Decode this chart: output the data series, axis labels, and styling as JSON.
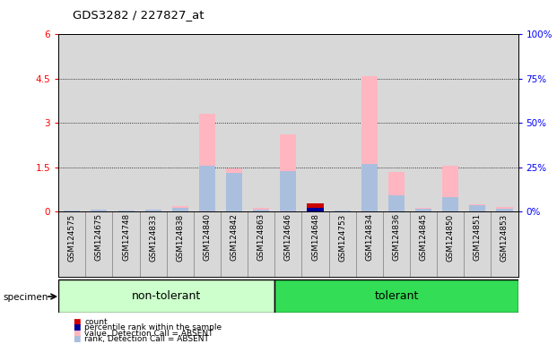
{
  "title": "GDS3282 / 227827_at",
  "samples": [
    "GSM124575",
    "GSM124675",
    "GSM124748",
    "GSM124833",
    "GSM124838",
    "GSM124840",
    "GSM124842",
    "GSM124863",
    "GSM124646",
    "GSM124648",
    "GSM124753",
    "GSM124834",
    "GSM124836",
    "GSM124845",
    "GSM124850",
    "GSM124851",
    "GSM124853"
  ],
  "n_nontol": 8,
  "n_tol": 9,
  "value_absent": [
    0.05,
    0.08,
    0.04,
    0.07,
    0.18,
    3.3,
    1.45,
    0.12,
    2.6,
    0.0,
    0.05,
    4.6,
    1.35,
    0.12,
    1.55,
    0.25,
    0.15
  ],
  "rank_absent": [
    0.04,
    0.06,
    0.03,
    0.06,
    0.14,
    1.55,
    1.3,
    0.08,
    1.38,
    0.0,
    0.04,
    1.6,
    0.55,
    0.09,
    0.5,
    0.22,
    0.1
  ],
  "count": [
    0.0,
    0.0,
    0.0,
    0.0,
    0.0,
    0.0,
    0.0,
    0.0,
    0.0,
    0.28,
    0.0,
    0.0,
    0.0,
    0.0,
    0.0,
    0.0,
    0.0
  ],
  "percentile": [
    0.0,
    0.0,
    0.0,
    0.0,
    0.0,
    0.0,
    0.0,
    0.0,
    0.0,
    0.12,
    0.0,
    0.0,
    0.0,
    0.0,
    0.0,
    0.0,
    0.0
  ],
  "ylim_left": [
    0,
    6
  ],
  "ylim_right": [
    0,
    100
  ],
  "yticks_left": [
    0,
    1.5,
    3,
    4.5,
    6
  ],
  "yticks_left_labels": [
    "0",
    "1.5",
    "3",
    "4.5",
    "6"
  ],
  "yticks_right": [
    0,
    25,
    50,
    75,
    100
  ],
  "yticks_right_labels": [
    "0%",
    "25%",
    "50%",
    "75%",
    "100%"
  ],
  "color_value_absent": "#FFB6C1",
  "color_rank_absent": "#AABFDD",
  "color_count": "#CC0000",
  "color_percentile": "#000099",
  "bg_plot": "#D8D8D8",
  "bg_fig": "#FFFFFF",
  "group_nontol_color": "#CCFFCC",
  "group_tol_color": "#33DD55",
  "bar_width": 0.6,
  "legend_items": [
    {
      "label": "count",
      "color": "#CC0000"
    },
    {
      "label": "percentile rank within the sample",
      "color": "#000099"
    },
    {
      "label": "value, Detection Call = ABSENT",
      "color": "#FFB6C1"
    },
    {
      "label": "rank, Detection Call = ABSENT",
      "color": "#AABFDD"
    }
  ]
}
